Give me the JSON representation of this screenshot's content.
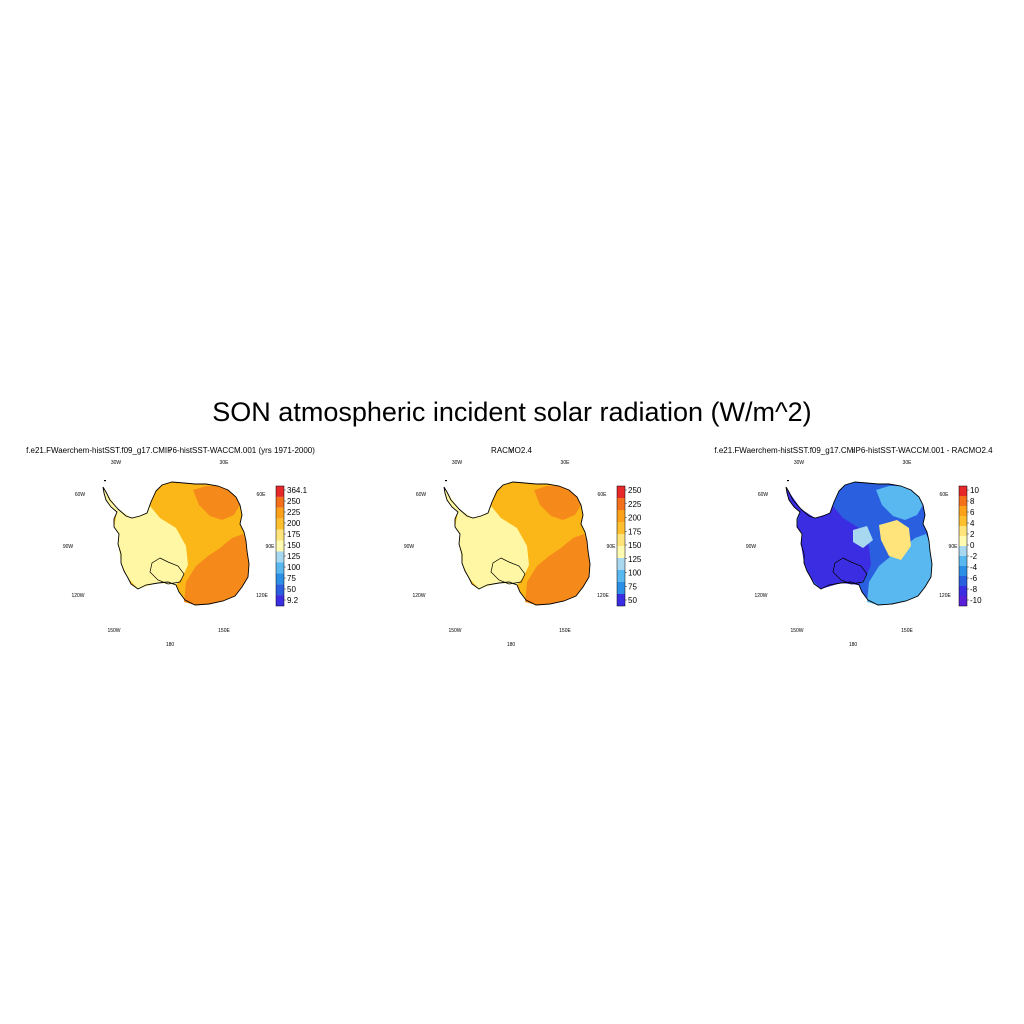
{
  "figure": {
    "title": "SON atmospheric incident solar radiation (W/m^2)"
  },
  "panels": [
    {
      "title": "f.e21.FWaerchem-histSST.f09_g17.CMIP6-histSST-WACCM.001 (yrs 1971-2000)",
      "lon_labels": [
        "30W",
        "30E",
        "60W",
        "60E",
        "90W",
        "90E",
        "120W",
        "120E",
        "150W",
        "150E",
        "180"
      ],
      "colorbar": {
        "labels": [
          "364.1",
          "250",
          "225",
          "200",
          "175",
          "150",
          "125",
          "100",
          "75",
          "50",
          "9.2"
        ],
        "colors": [
          "#e5282a",
          "#f4711c",
          "#fca21a",
          "#fec02e",
          "#fee47a",
          "#fffbb0",
          "#a7d8f0",
          "#58b8ef",
          "#2b8fe6",
          "#2a5fe0",
          "#3b2ee2"
        ]
      },
      "field": {
        "coast": "#fff7a3",
        "interior": "#fbb717",
        "east": "#f58a1b"
      }
    },
    {
      "title": "RACMO2.4",
      "lon_labels": [
        "30W",
        "30E",
        "60W",
        "60E",
        "90W",
        "90E",
        "120W",
        "120E",
        "150W",
        "150E",
        "180"
      ],
      "colorbar": {
        "labels": [
          "250",
          "225",
          "200",
          "175",
          "150",
          "125",
          "100",
          "75",
          "50"
        ],
        "colors": [
          "#e5282a",
          "#f4711c",
          "#fca21a",
          "#fec02e",
          "#fee47a",
          "#fffbb0",
          "#a7d8f0",
          "#58b8ef",
          "#2b8fe6",
          "#3b2ee2"
        ]
      },
      "field": {
        "coast": "#fff7a3",
        "interior": "#fbb717",
        "east": "#f58a1b"
      }
    },
    {
      "title": "f.e21.FWaerchem-histSST.f09_g17.CMIP6-histSST-WACCM.001 - RACMO2.4",
      "lon_labels": [
        "30W",
        "30E",
        "60W",
        "60E",
        "90W",
        "90E",
        "120W",
        "120E",
        "150W",
        "150E",
        "180"
      ],
      "colorbar": {
        "labels": [
          "10",
          "8",
          "6",
          "4",
          "2",
          "0",
          "-2",
          "-4",
          "-6",
          "-8",
          "-10"
        ],
        "colors": [
          "#e5282a",
          "#f4711c",
          "#fca21a",
          "#fec02e",
          "#fee47a",
          "#fffbb0",
          "#a7d8f0",
          "#58b8ef",
          "#2b8fe6",
          "#2a5fe0",
          "#3b2ee2",
          "#5a1fd8"
        ]
      },
      "field": {
        "coast": "#3b2ee2",
        "interior": "#2a5fe0",
        "east": "#58b8ef"
      }
    }
  ]
}
